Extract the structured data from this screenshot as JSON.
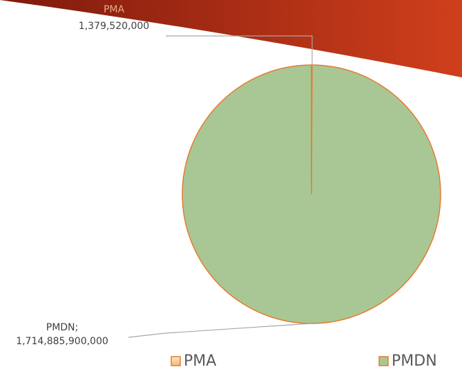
{
  "chart_data": {
    "type": "pie",
    "categories": [
      "PMA",
      "PMDN"
    ],
    "values": [
      1379520000,
      1714885900000
    ],
    "value_labels": [
      "1,379,520,000",
      "1,714,885,900,000"
    ],
    "data_label_names": [
      "PMA",
      "PMDN;"
    ],
    "colors": [
      "#f6c890",
      "#a9c794"
    ],
    "edge_color": "#e57b2e",
    "legend": "bottom"
  }
}
